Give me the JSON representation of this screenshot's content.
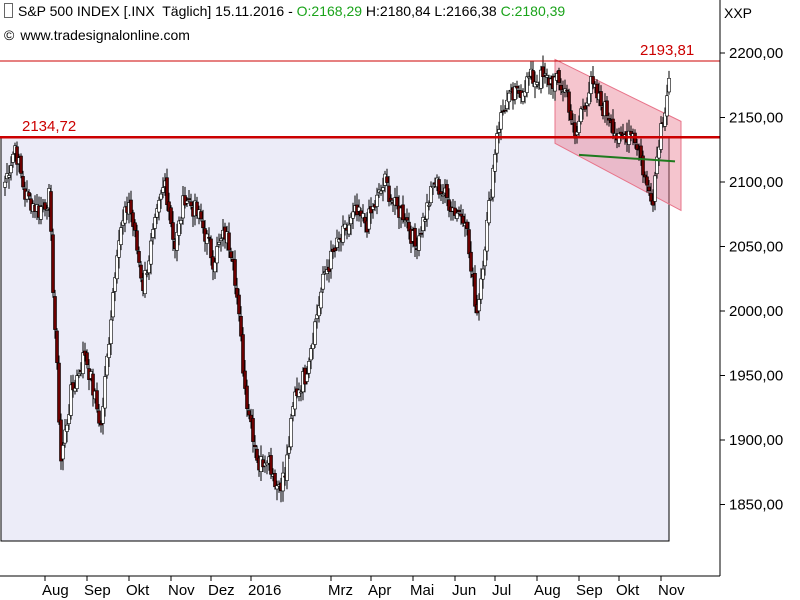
{
  "header": {
    "instrument": "S&P 500 INDEX [.INX",
    "interval": "Täglich]",
    "date": "15.11.2016",
    "sep": "-",
    "open": "O:2168,29",
    "high": "H:2180,84",
    "low": "L:2166,38",
    "close": "C:2180,39",
    "source": "www.tradesignalonline.com",
    "symbol": "XXP"
  },
  "colors": {
    "up": "#ffffff",
    "down": "#6b0000",
    "resistance": "#cc0000",
    "channel": "#e8748a",
    "support": "#1e7a1e",
    "lowerBox": "#ececf8"
  },
  "chart_data": {
    "type": "candlestick",
    "title": "S&P 500 INDEX [.INX Täglich]",
    "ylim": [
      1810,
      2215
    ],
    "y_ticks": [
      1850,
      1900,
      1950,
      2000,
      2050,
      2100,
      2150,
      2200
    ],
    "y_tick_labels": [
      "1850,00",
      "1900,00",
      "1950,00",
      "2000,00",
      "2050,00",
      "2100,00",
      "2150,00",
      "2200,00"
    ],
    "x_labels": [
      "Aug",
      "Sep",
      "Okt",
      "Nov",
      "Dez",
      "2016",
      "Mrz",
      "Apr",
      "Mai",
      "Jun",
      "Jul",
      "Aug",
      "Sep",
      "Okt",
      "Nov"
    ],
    "x_label_index": [
      20,
      41,
      62,
      83,
      103,
      123,
      163,
      183,
      204,
      225,
      245,
      266,
      287,
      307,
      328
    ],
    "last_value": 2180.39,
    "lines": [
      {
        "label": "2193,81",
        "value": 2193.81
      },
      {
        "label": "2134,72",
        "value": 2134.72
      }
    ],
    "anchors": [
      [
        0,
        2100
      ],
      [
        5,
        2128
      ],
      [
        10,
        2090
      ],
      [
        17,
        2078
      ],
      [
        22,
        2088
      ],
      [
        28,
        1885
      ],
      [
        33,
        1935
      ],
      [
        40,
        1968
      ],
      [
        48,
        1910
      ],
      [
        56,
        2050
      ],
      [
        62,
        2085
      ],
      [
        69,
        2020
      ],
      [
        77,
        2080
      ],
      [
        80,
        2100
      ],
      [
        85,
        2050
      ],
      [
        90,
        2090
      ],
      [
        98,
        2070
      ],
      [
        104,
        2040
      ],
      [
        110,
        2060
      ],
      [
        114,
        2045
      ],
      [
        120,
        1940
      ],
      [
        127,
        1880
      ],
      [
        131,
        1890
      ],
      [
        136,
        1865
      ],
      [
        140,
        1872
      ],
      [
        145,
        1935
      ],
      [
        150,
        1950
      ],
      [
        160,
        2030
      ],
      [
        166,
        2050
      ],
      [
        175,
        2075
      ],
      [
        181,
        2068
      ],
      [
        190,
        2100
      ],
      [
        195,
        2080
      ],
      [
        200,
        2075
      ],
      [
        205,
        2050
      ],
      [
        215,
        2100
      ],
      [
        225,
        2078
      ],
      [
        230,
        2075
      ],
      [
        233,
        2030
      ],
      [
        236,
        2000
      ],
      [
        242,
        2080
      ],
      [
        246,
        2140
      ],
      [
        250,
        2160
      ],
      [
        256,
        2168
      ],
      [
        262,
        2180
      ],
      [
        268,
        2180
      ],
      [
        275,
        2178
      ],
      [
        281,
        2170
      ],
      [
        285,
        2130
      ],
      [
        288,
        2155
      ],
      [
        293,
        2175
      ],
      [
        298,
        2160
      ],
      [
        303,
        2150
      ],
      [
        307,
        2130
      ],
      [
        313,
        2142
      ],
      [
        317,
        2125
      ],
      [
        321,
        2095
      ],
      [
        324,
        2090
      ],
      [
        327,
        2135
      ],
      [
        330,
        2160
      ],
      [
        332,
        2180
      ]
    ],
    "channel": {
      "upper": [
        [
          275,
          2195
        ],
        [
          338,
          2147
        ]
      ],
      "lower": [
        [
          275,
          2130
        ],
        [
          338,
          2078
        ]
      ]
    },
    "support": [
      [
        287,
        2121
      ],
      [
        335,
        2116
      ]
    ]
  }
}
